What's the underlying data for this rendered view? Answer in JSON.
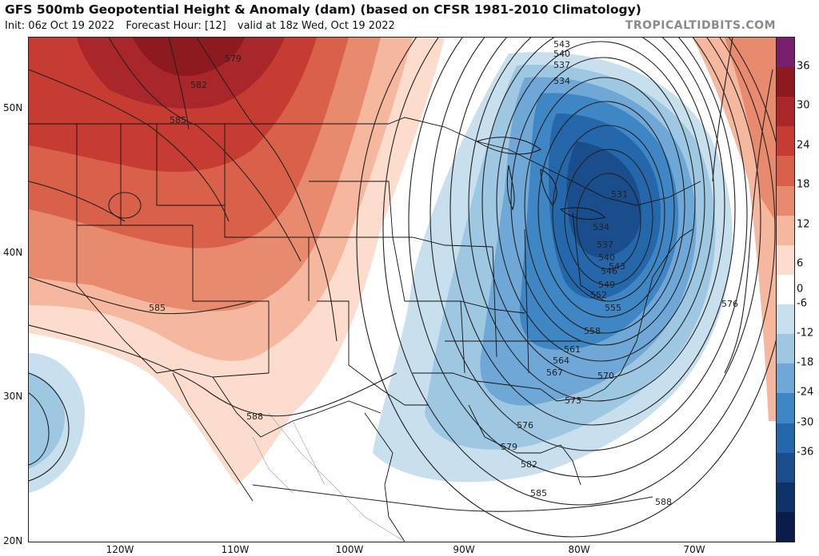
{
  "header": {
    "title": "GFS 500mb Geopotential Height & Anomaly (dam) (based on CFSR 1981-2010 Climatology)",
    "init": "Init: 06z Oct 19 2022",
    "forecast_hour": "Forecast Hour: [12]",
    "valid": "valid at 18z Wed, Oct 19 2022",
    "brand": "TROPICALTIDBITS.COM"
  },
  "axes": {
    "latitude_labels": [
      "50N",
      "40N",
      "30N",
      "20N"
    ],
    "longitude_labels": [
      "120W",
      "110W",
      "100W",
      "90W",
      "80W",
      "70W"
    ]
  },
  "colorbar": {
    "labels": [
      "36",
      "30",
      "24",
      "18",
      "12",
      "6",
      "0",
      "-6",
      "-12",
      "-18",
      "-24",
      "-30",
      "-36"
    ],
    "colors": [
      "#7a1f6e",
      "#8c1a1f",
      "#a9262a",
      "#c63c33",
      "#d9614a",
      "#e88a6e",
      "#f5b79e",
      "#fbdccd",
      "#ffffff",
      "#c8dfee",
      "#9ec8e2",
      "#6fa8d6",
      "#3f86c4",
      "#2567ab",
      "#1a4d8c",
      "#0f3269",
      "#0a1c4a"
    ]
  },
  "contour_labels": [
    "543",
    "540",
    "537",
    "534",
    "579",
    "582",
    "585",
    "588",
    "585",
    "531",
    "534",
    "537",
    "540",
    "543",
    "546",
    "549",
    "552",
    "555",
    "558",
    "561",
    "564",
    "567",
    "570",
    "573",
    "576",
    "579",
    "582",
    "585",
    "588",
    "576"
  ]
}
